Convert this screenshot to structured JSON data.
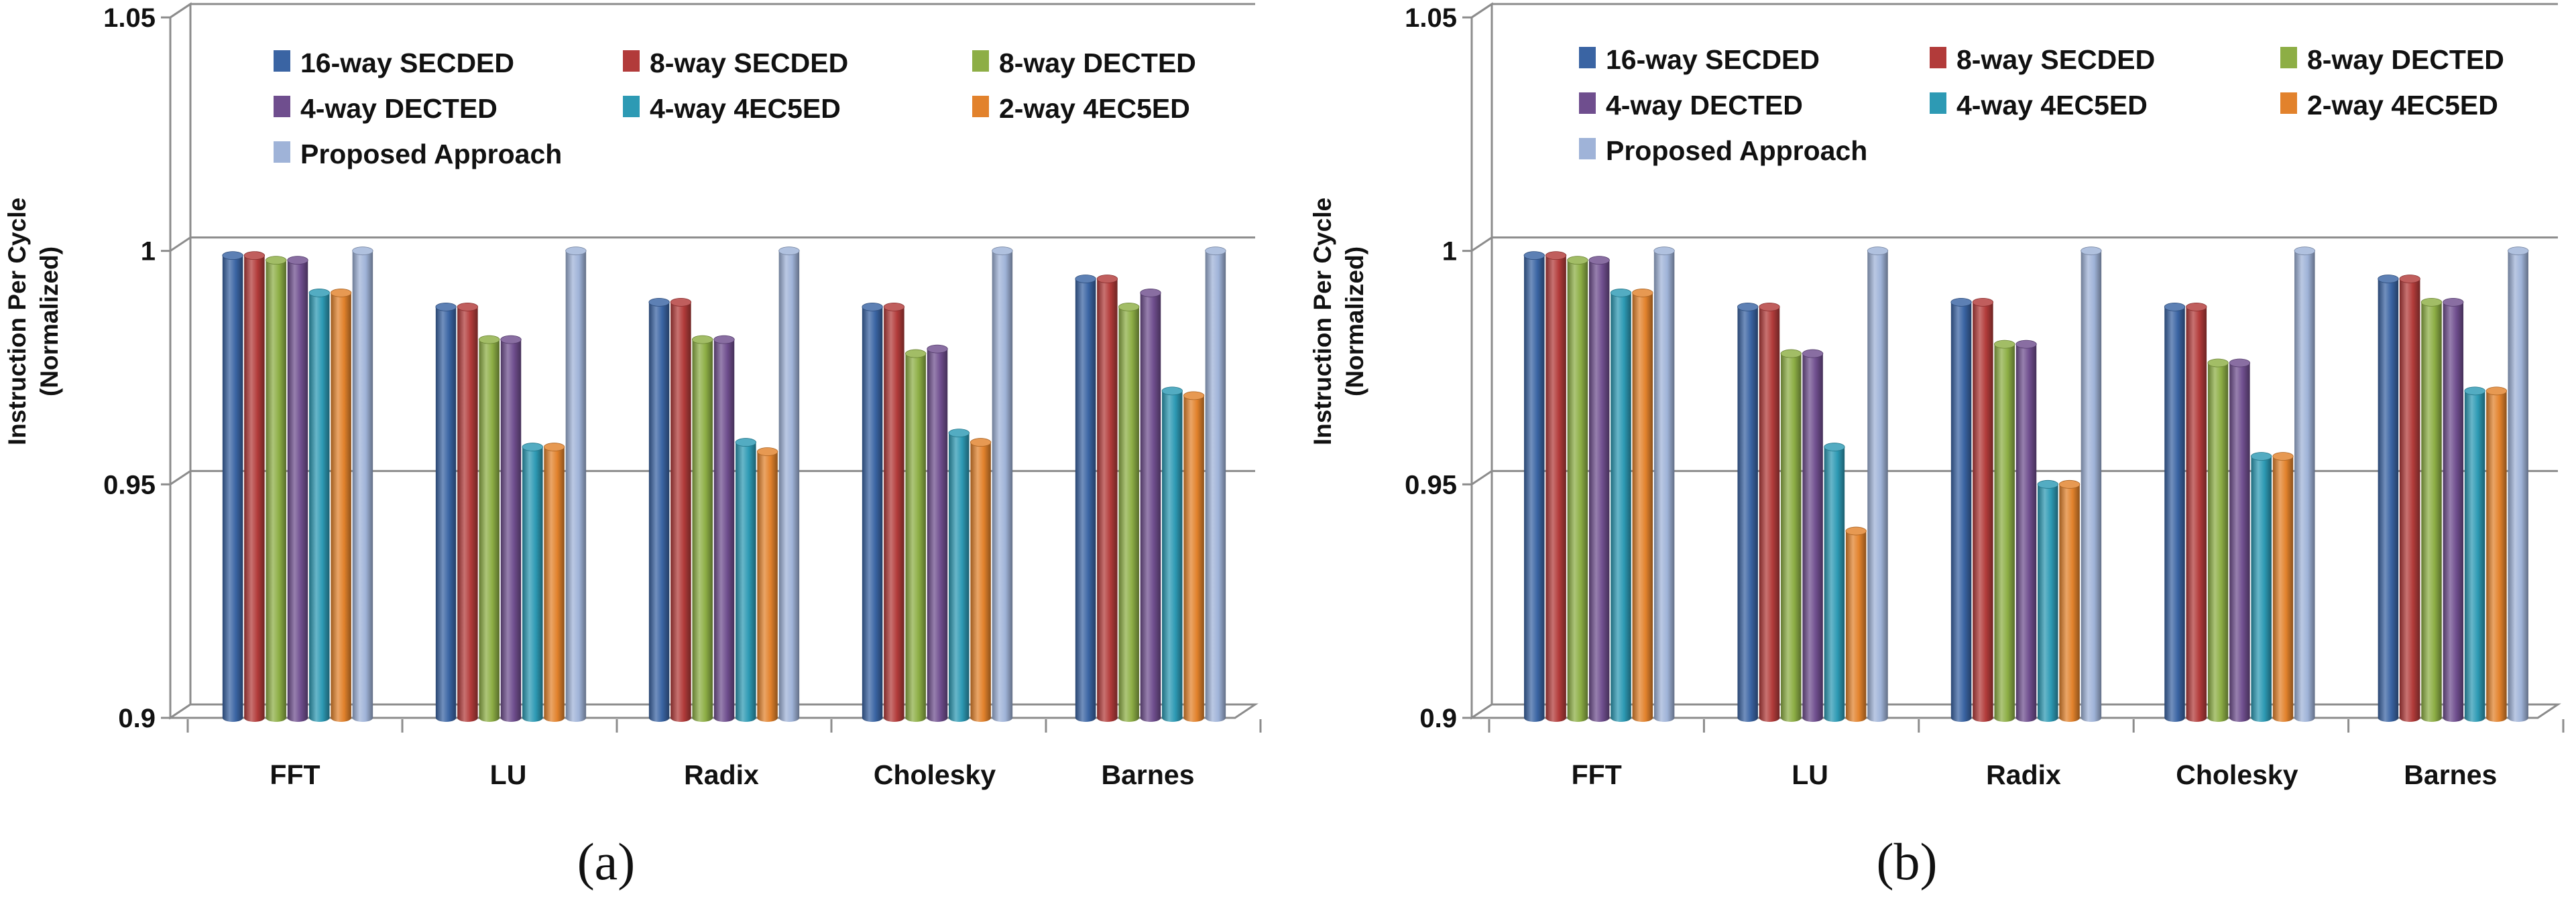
{
  "figure": {
    "series_colors": {
      "16-way SECDED": "#3A64A3",
      "8-way SECDED": "#B23B3A",
      "8-way DECTED": "#8DAE45",
      "4-way DECTED": "#6F4E8E",
      "4-way 4EC5ED": "#2D9AB4",
      "2-way 4EC5ED": "#E2822C",
      "Proposed Approach": "#9FB3D8"
    }
  },
  "chart_data": [
    {
      "type": "bar",
      "panel_label": "(a)",
      "title": "",
      "xlabel": "",
      "ylabel": "Instruction Per Cycle (Normalized)",
      "ylabel_lines": [
        "Instruction Per Cycle",
        "(Normalized)"
      ],
      "ylim": [
        0.9,
        1.05
      ],
      "yticks": [
        "0.9",
        "0.95",
        "1",
        "1.05"
      ],
      "categories": [
        "FFT",
        "LU",
        "Radix",
        "Cholesky",
        "Barnes"
      ],
      "legend_position": "top",
      "series": [
        {
          "name": "16-way SECDED",
          "values": [
            0.999,
            0.988,
            0.989,
            0.988,
            0.994
          ]
        },
        {
          "name": "8-way SECDED",
          "values": [
            0.999,
            0.988,
            0.989,
            0.988,
            0.994
          ]
        },
        {
          "name": "8-way DECTED",
          "values": [
            0.998,
            0.981,
            0.981,
            0.978,
            0.988
          ]
        },
        {
          "name": "4-way DECTED",
          "values": [
            0.998,
            0.981,
            0.981,
            0.979,
            0.991
          ]
        },
        {
          "name": "4-way 4EC5ED",
          "values": [
            0.991,
            0.958,
            0.959,
            0.961,
            0.97
          ]
        },
        {
          "name": "2-way 4EC5ED",
          "values": [
            0.991,
            0.958,
            0.957,
            0.959,
            0.969
          ]
        },
        {
          "name": "Proposed Approach",
          "values": [
            1.0,
            1.0,
            1.0,
            1.0,
            1.0
          ]
        }
      ]
    },
    {
      "type": "bar",
      "panel_label": "(b)",
      "title": "",
      "xlabel": "",
      "ylabel": "Instruction Per Cycle (Normalized)",
      "ylabel_lines": [
        "Instruction Per Cycle",
        "(Normalized)"
      ],
      "ylim": [
        0.9,
        1.05
      ],
      "yticks": [
        "0.9",
        "0.95",
        "1",
        "1.05"
      ],
      "categories": [
        "FFT",
        "LU",
        "Radix",
        "Cholesky",
        "Barnes"
      ],
      "legend_position": "top",
      "series": [
        {
          "name": "16-way SECDED",
          "values": [
            0.999,
            0.988,
            0.989,
            0.988,
            0.994
          ]
        },
        {
          "name": "8-way SECDED",
          "values": [
            0.999,
            0.988,
            0.989,
            0.988,
            0.994
          ]
        },
        {
          "name": "8-way DECTED",
          "values": [
            0.998,
            0.978,
            0.98,
            0.976,
            0.989
          ]
        },
        {
          "name": "4-way DECTED",
          "values": [
            0.998,
            0.978,
            0.98,
            0.976,
            0.989
          ]
        },
        {
          "name": "4-way 4EC5ED",
          "values": [
            0.991,
            0.958,
            0.95,
            0.956,
            0.97
          ]
        },
        {
          "name": "2-way 4EC5ED",
          "values": [
            0.991,
            0.94,
            0.95,
            0.956,
            0.97
          ]
        },
        {
          "name": "Proposed Approach",
          "values": [
            1.0,
            1.0,
            1.0,
            1.0,
            1.0
          ]
        }
      ]
    }
  ]
}
